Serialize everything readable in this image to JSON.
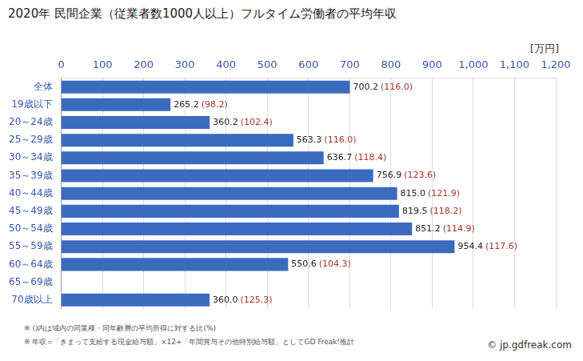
{
  "chart_data": {
    "type": "bar",
    "title": "2020年 民間企業（従業者数1000人以上）フルタイム労働者の平均年収",
    "xlabel": "[万円]",
    "orientation": "horizontal",
    "categories": [
      "全体",
      "19歳以下",
      "20～24歳",
      "25～29歳",
      "30～34歳",
      "35～39歳",
      "40～44歳",
      "45～49歳",
      "50～54歳",
      "55～59歳",
      "60～64歳",
      "65～69歳",
      "70歳以上"
    ],
    "values": [
      700.2,
      265.2,
      360.2,
      563.3,
      636.7,
      756.9,
      815.0,
      819.5,
      851.2,
      954.4,
      550.6,
      null,
      360.0
    ],
    "value_labels": [
      "700.2",
      "265.2",
      "360.2",
      "563.3",
      "636.7",
      "756.9",
      "815.0",
      "819.5",
      "851.2",
      "954.4",
      "550.6",
      null,
      "360.0"
    ],
    "ratio_labels": [
      "(116.0)",
      "(98.2)",
      "(102.4)",
      "(116.0)",
      "(118.4)",
      "(123.6)",
      "(121.9)",
      "(118.2)",
      "(114.9)",
      "(117.6)",
      "(104.3)",
      null,
      "(125.3)"
    ],
    "color": "#3a6bbf",
    "ratio_color": "#a3352d",
    "xlim": [
      0,
      1200
    ],
    "xticks": [
      0,
      100,
      200,
      300,
      400,
      500,
      600,
      700,
      800,
      900,
      1000,
      1100,
      1200
    ],
    "grid": true,
    "data_labels": true,
    "annotations": [
      "※ ()内は域内の同業種・同年齢層の平均所得に対する比(%)",
      "※ 年収=「きまって支給する現金給与額」×12+「年間賞与その他特別給与額」としてGD Freak!推計"
    ],
    "source": "© jp.gdfreak.com"
  }
}
